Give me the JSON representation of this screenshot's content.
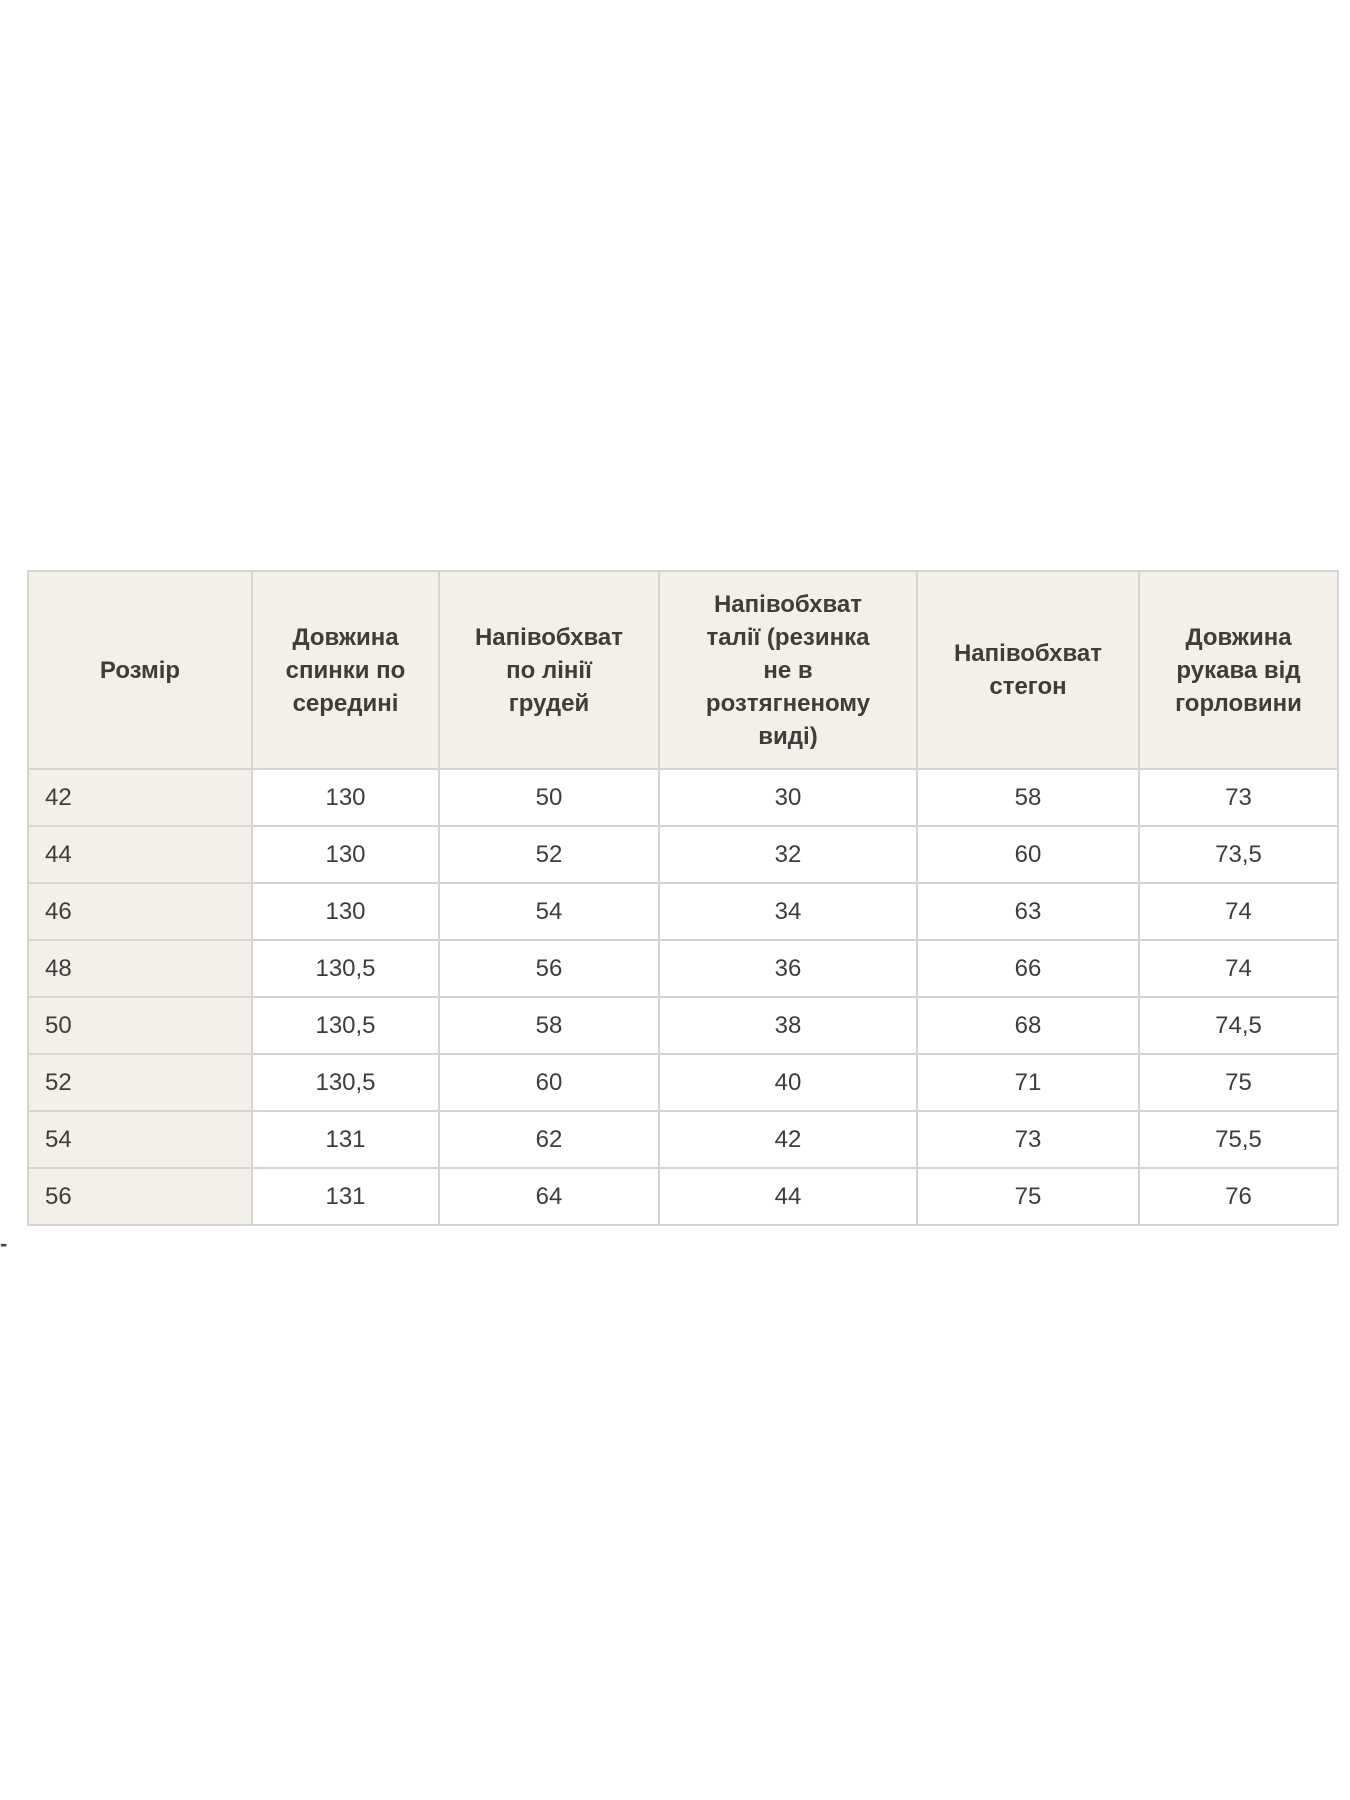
{
  "page": {
    "background": "#ffffff"
  },
  "size_chart": {
    "columns": [
      {
        "label": "Розмір"
      },
      {
        "label": "Довжина\nспинки по\nсередині"
      },
      {
        "label": "Напівобхват\nпо лінії\nгрудей"
      },
      {
        "label": "Напівобхват\nталії (резинка\nне в\nрозтягненому\nвиді)"
      },
      {
        "label": "Напівобхват\nстегон"
      },
      {
        "label": "Довжина\nрукава від\nгорловини"
      }
    ],
    "rows": [
      [
        "42",
        "130",
        "50",
        "30",
        "58",
        "73"
      ],
      [
        "44",
        "130",
        "52",
        "32",
        "60",
        "73,5"
      ],
      [
        "46",
        "130",
        "54",
        "34",
        "63",
        "74"
      ],
      [
        "48",
        "130,5",
        "56",
        "36",
        "66",
        "74"
      ],
      [
        "50",
        "130,5",
        "58",
        "38",
        "68",
        "74,5"
      ],
      [
        "52",
        "130,5",
        "60",
        "40",
        "71",
        "75"
      ],
      [
        "54",
        "131",
        "62",
        "42",
        "73",
        "75,5"
      ],
      [
        "56",
        "131",
        "64",
        "44",
        "75",
        "76"
      ]
    ],
    "colors": {
      "header_bg": "#f2f0e9",
      "cell_bg": "#ffffff",
      "border": "#d7d5d0",
      "text": "#3f3d3a"
    }
  },
  "stray_mark": {
    "text": "-"
  }
}
